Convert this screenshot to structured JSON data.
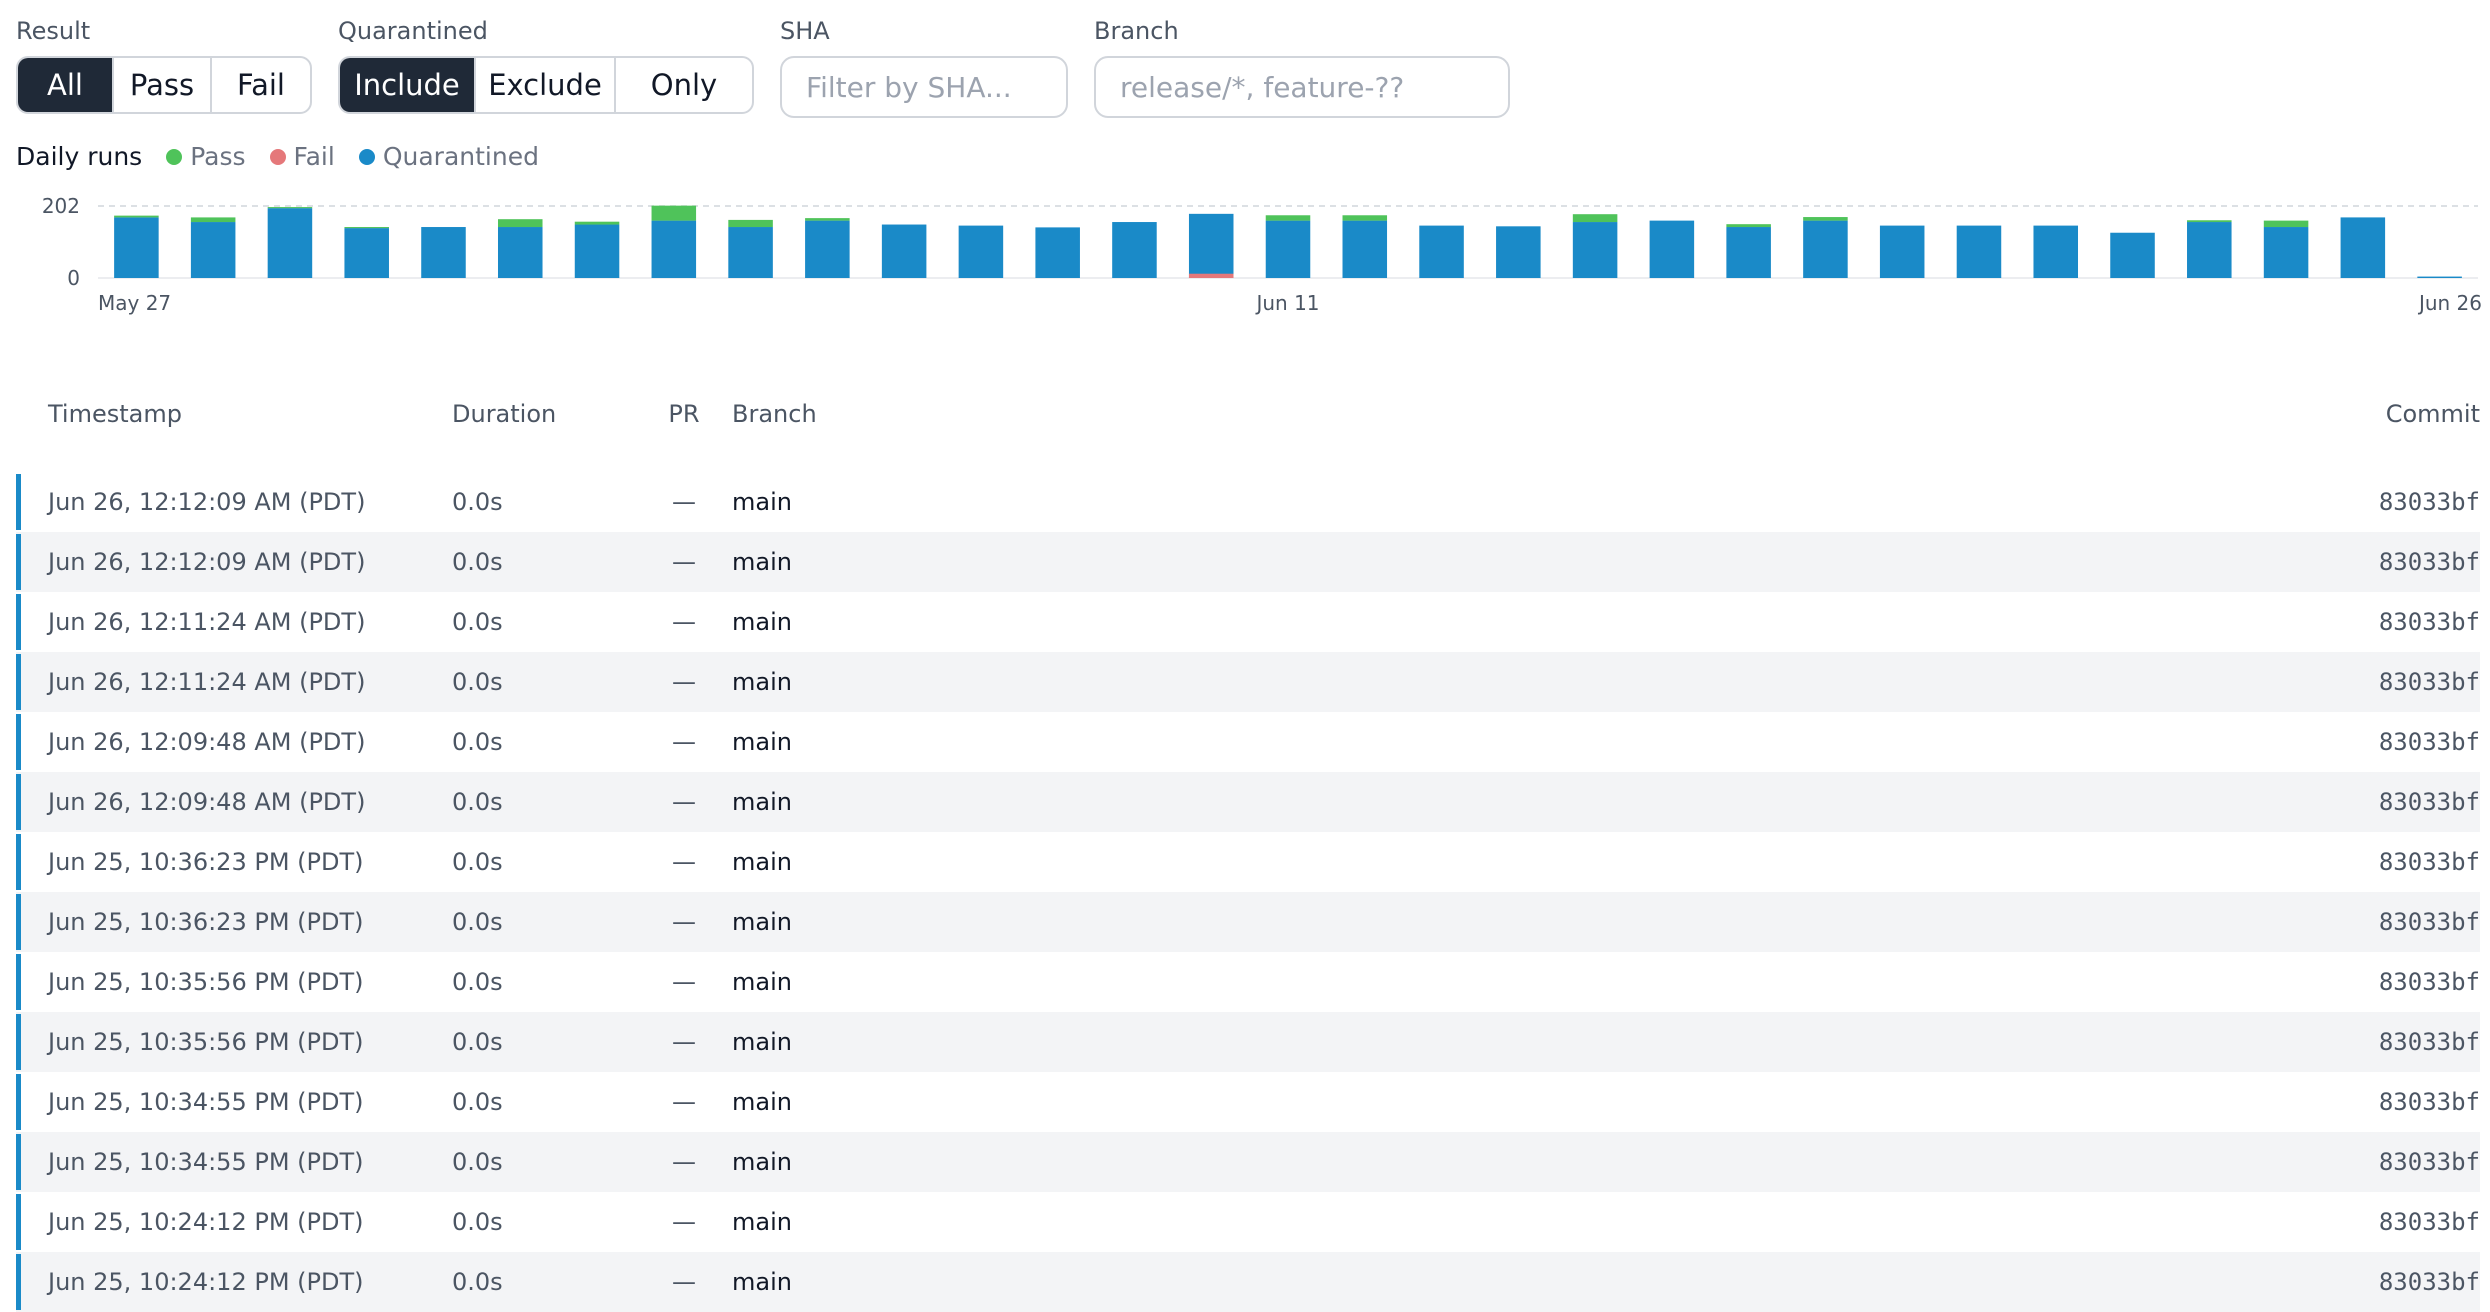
{
  "filters": {
    "result": {
      "label": "Result",
      "options": [
        "All",
        "Pass",
        "Fail"
      ],
      "active": "All"
    },
    "quarantined": {
      "label": "Quarantined",
      "options": [
        "Include",
        "Exclude",
        "Only"
      ],
      "active": "Include"
    },
    "sha": {
      "label": "SHA",
      "placeholder": "Filter by SHA..."
    },
    "branch": {
      "label": "Branch",
      "placeholder": "release/*, feature-??"
    }
  },
  "legend": {
    "title": "Daily runs",
    "items": [
      {
        "name": "Pass",
        "color": "#4fc35a"
      },
      {
        "name": "Fail",
        "color": "#e5787a"
      },
      {
        "name": "Quarantined",
        "color": "#1a8ac8"
      }
    ]
  },
  "chart_data": {
    "type": "bar",
    "stacked": true,
    "ytick_labels": [
      "202",
      "0"
    ],
    "ylim": [
      0,
      202
    ],
    "xtick_labels": [
      {
        "label": "May 27",
        "index": 0
      },
      {
        "label": "Jun 11",
        "index": 15
      },
      {
        "label": "Jun 26",
        "index": 30
      }
    ],
    "gridline_at": 202,
    "series": [
      {
        "name": "Quarantined",
        "color": "#1a8ac8",
        "values": [
          170,
          157,
          196,
          140,
          143,
          143,
          150,
          161,
          143,
          161,
          150,
          147,
          142,
          157,
          180,
          161,
          161,
          147,
          145,
          157,
          161,
          143,
          161,
          147,
          147,
          147,
          127,
          157,
          143,
          170,
          4
        ]
      },
      {
        "name": "Pass",
        "color": "#4fc35a",
        "values": [
          5,
          13,
          3,
          3,
          0,
          22,
          8,
          42,
          20,
          7,
          0,
          0,
          0,
          0,
          0,
          15,
          15,
          0,
          0,
          22,
          0,
          8,
          10,
          0,
          0,
          0,
          0,
          5,
          18,
          0,
          0
        ]
      },
      {
        "name": "Fail",
        "color": "#e5787a",
        "values": [
          0,
          0,
          0,
          0,
          0,
          0,
          0,
          0,
          0,
          0,
          0,
          0,
          0,
          0,
          12,
          0,
          0,
          0,
          0,
          0,
          0,
          0,
          0,
          0,
          0,
          0,
          0,
          0,
          0,
          0,
          0
        ]
      }
    ]
  },
  "table": {
    "columns": {
      "timestamp": "Timestamp",
      "duration": "Duration",
      "pr": "PR",
      "branch": "Branch",
      "commit": "Commit"
    },
    "rows": [
      {
        "timestamp": "Jun 26, 12:12:09 AM (PDT)",
        "duration": "0.0s",
        "pr": "—",
        "branch": "main",
        "commit": "83033bf"
      },
      {
        "timestamp": "Jun 26, 12:12:09 AM (PDT)",
        "duration": "0.0s",
        "pr": "—",
        "branch": "main",
        "commit": "83033bf"
      },
      {
        "timestamp": "Jun 26, 12:11:24 AM (PDT)",
        "duration": "0.0s",
        "pr": "—",
        "branch": "main",
        "commit": "83033bf"
      },
      {
        "timestamp": "Jun 26, 12:11:24 AM (PDT)",
        "duration": "0.0s",
        "pr": "—",
        "branch": "main",
        "commit": "83033bf"
      },
      {
        "timestamp": "Jun 26, 12:09:48 AM (PDT)",
        "duration": "0.0s",
        "pr": "—",
        "branch": "main",
        "commit": "83033bf"
      },
      {
        "timestamp": "Jun 26, 12:09:48 AM (PDT)",
        "duration": "0.0s",
        "pr": "—",
        "branch": "main",
        "commit": "83033bf"
      },
      {
        "timestamp": "Jun 25, 10:36:23 PM (PDT)",
        "duration": "0.0s",
        "pr": "—",
        "branch": "main",
        "commit": "83033bf"
      },
      {
        "timestamp": "Jun 25, 10:36:23 PM (PDT)",
        "duration": "0.0s",
        "pr": "—",
        "branch": "main",
        "commit": "83033bf"
      },
      {
        "timestamp": "Jun 25, 10:35:56 PM (PDT)",
        "duration": "0.0s",
        "pr": "—",
        "branch": "main",
        "commit": "83033bf"
      },
      {
        "timestamp": "Jun 25, 10:35:56 PM (PDT)",
        "duration": "0.0s",
        "pr": "—",
        "branch": "main",
        "commit": "83033bf"
      },
      {
        "timestamp": "Jun 25, 10:34:55 PM (PDT)",
        "duration": "0.0s",
        "pr": "—",
        "branch": "main",
        "commit": "83033bf"
      },
      {
        "timestamp": "Jun 25, 10:34:55 PM (PDT)",
        "duration": "0.0s",
        "pr": "—",
        "branch": "main",
        "commit": "83033bf"
      },
      {
        "timestamp": "Jun 25, 10:24:12 PM (PDT)",
        "duration": "0.0s",
        "pr": "—",
        "branch": "main",
        "commit": "83033bf"
      },
      {
        "timestamp": "Jun 25, 10:24:12 PM (PDT)",
        "duration": "0.0s",
        "pr": "—",
        "branch": "main",
        "commit": "83033bf"
      }
    ]
  }
}
